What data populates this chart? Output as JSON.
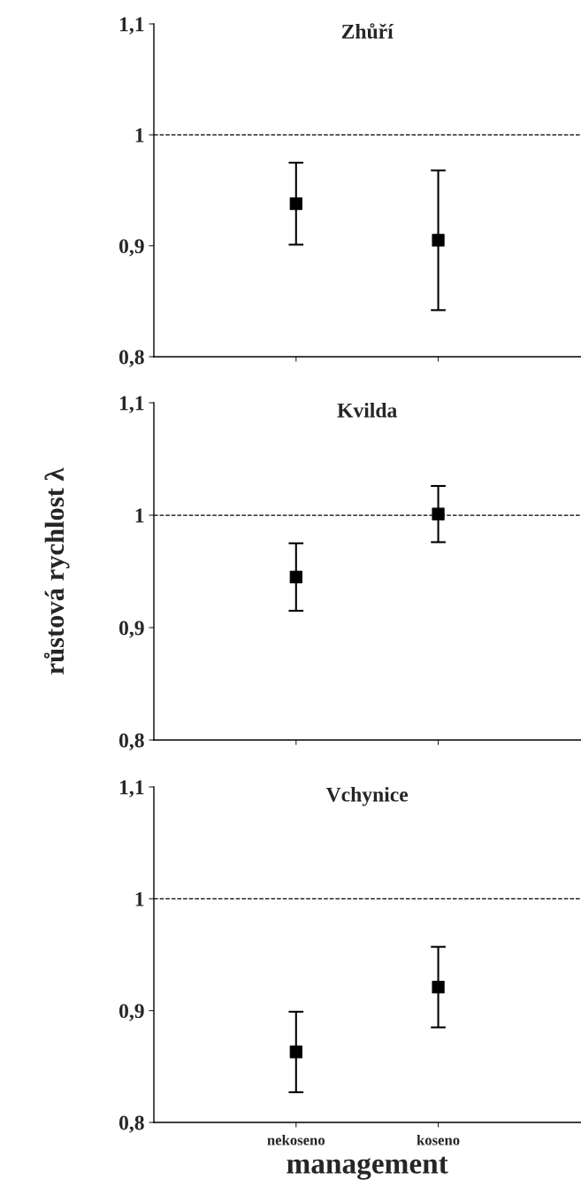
{
  "chart_data": [
    {
      "type": "scatter",
      "title": "Zhůří",
      "categories": [
        null,
        null
      ],
      "values": [
        0.938,
        0.905
      ],
      "errors": [
        0.037,
        0.063
      ],
      "color": "#000000",
      "marker": "square",
      "ylim": [
        0.8,
        1.1
      ],
      "yticks": [
        {
          "value": 0.8,
          "label": "0,8"
        },
        {
          "value": 0.9,
          "label": "0,9"
        },
        1,
        {
          "value": 1.1,
          "label": "1,1"
        }
      ],
      "ref_lines": [
        {
          "axis": "y",
          "value": 1,
          "line_style": "dashed"
        }
      ],
      "tick_labels": "y",
      "grid": false,
      "legend": false
    },
    {
      "type": "scatter",
      "title": "Kvilda",
      "ylabel": "růstová rychlost λ",
      "categories": [
        null,
        null
      ],
      "values": [
        0.945,
        1.001
      ],
      "errors": [
        0.03,
        0.025
      ],
      "color": "#000000",
      "marker": "square",
      "ylim": [
        0.8,
        1.1
      ],
      "yticks": [
        {
          "value": 0.8,
          "label": "0,8"
        },
        {
          "value": 0.9,
          "label": "0,9"
        },
        1,
        {
          "value": 1.1,
          "label": "1,1"
        }
      ],
      "ref_lines": [
        {
          "axis": "y",
          "value": 1,
          "line_style": "dashed"
        }
      ],
      "tick_labels": "y",
      "grid": false,
      "legend": false
    },
    {
      "type": "scatter",
      "title": "Vchynice",
      "xlabel": "management",
      "categories": [
        "nekoseno",
        "koseno"
      ],
      "values": [
        0.863,
        0.921
      ],
      "errors": [
        0.036,
        0.036
      ],
      "color": "#000000",
      "marker": "square",
      "ylim": [
        0.8,
        1.1
      ],
      "yticks": [
        {
          "value": 0.8,
          "label": "0,8"
        },
        {
          "value": 0.9,
          "label": "0,9"
        },
        1,
        {
          "value": 1.1,
          "label": "1,1"
        }
      ],
      "ref_lines": [
        {
          "axis": "y",
          "value": 1,
          "line_style": "dashed"
        }
      ],
      "grid": false,
      "legend": false
    }
  ]
}
